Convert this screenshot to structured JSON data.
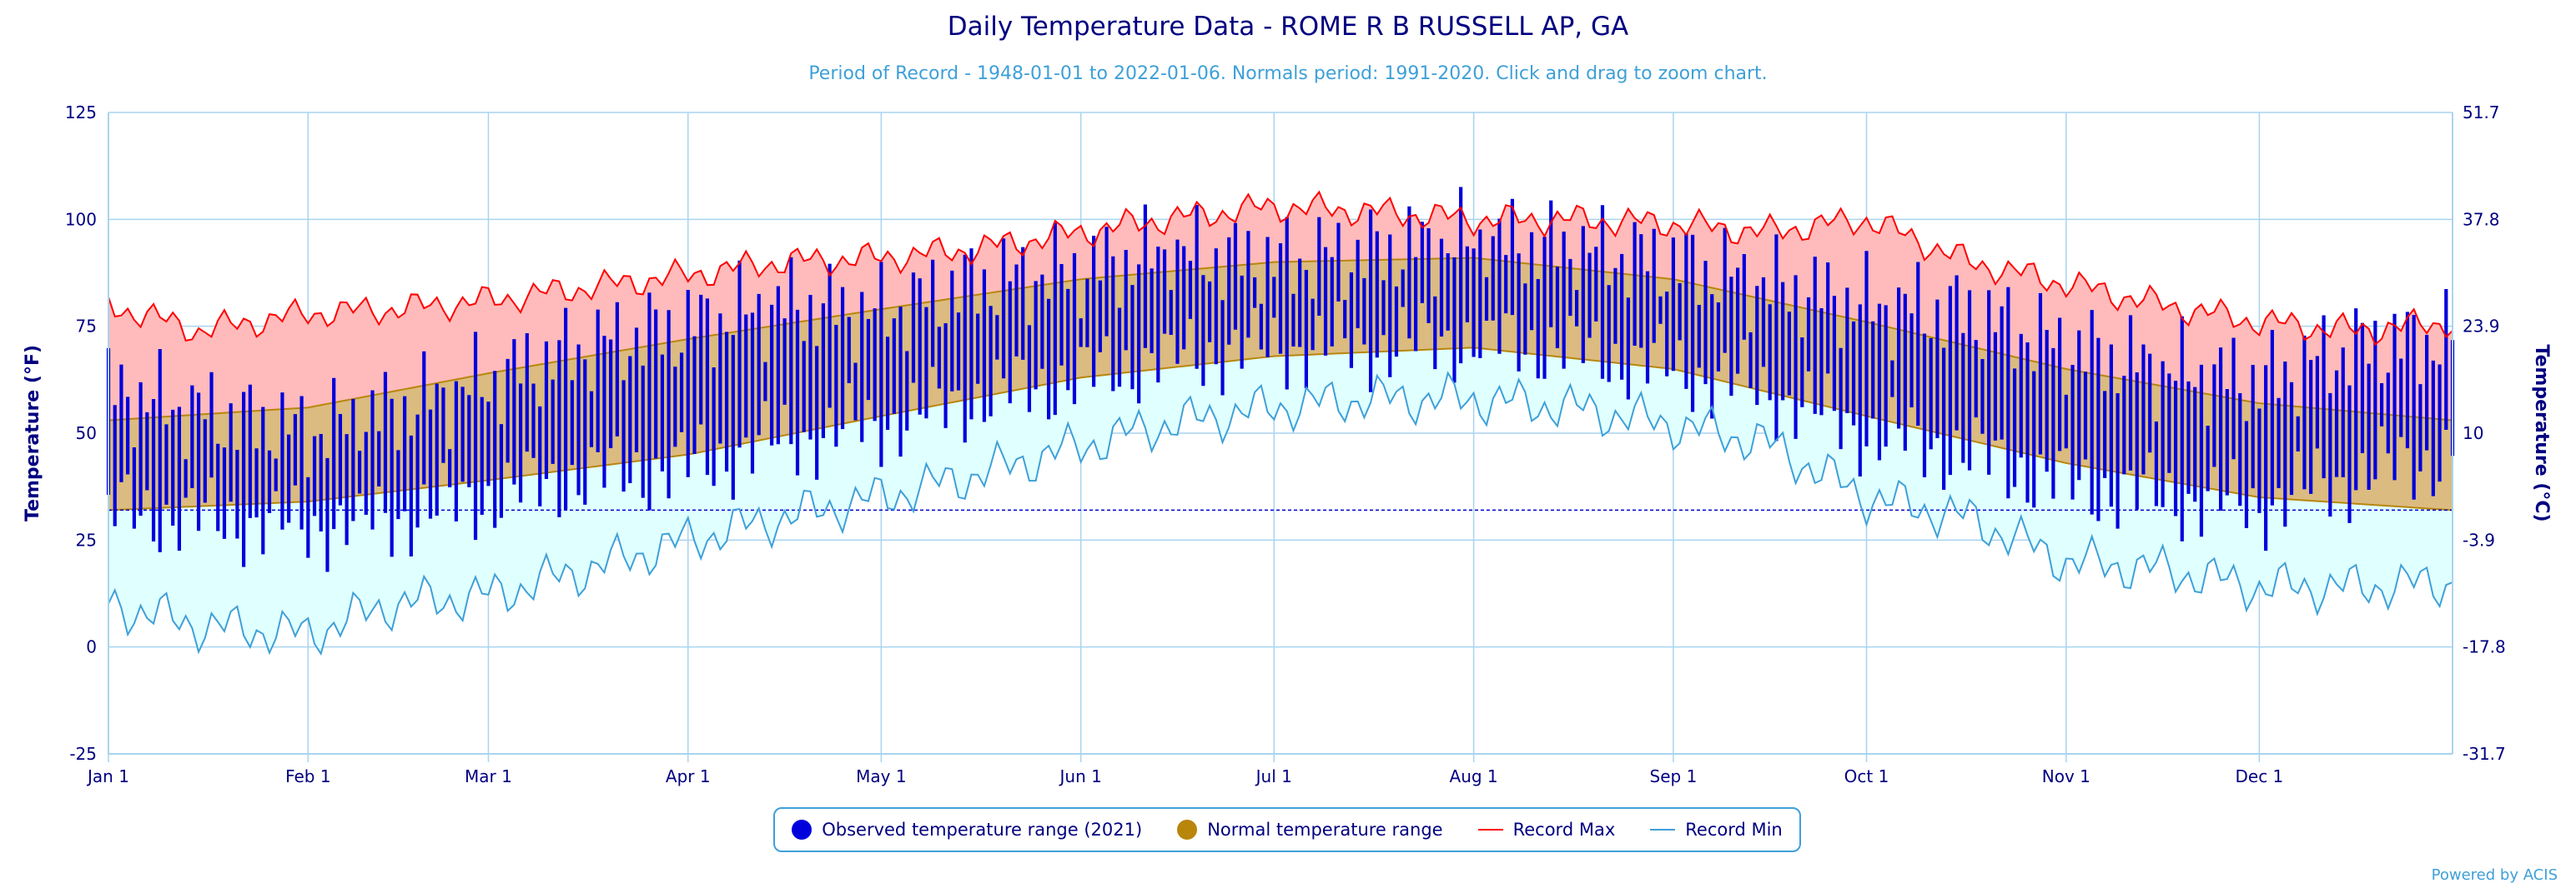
{
  "title": "Daily Temperature Data - ROME R B RUSSELL AP, GA",
  "subtitle": "Period of Record - 1948-01-01 to 2022-01-06. Normals period: 1991-2020. Click and drag to zoom chart.",
  "credit": "Powered by ACIS",
  "colors": {
    "observed": "#0000dd",
    "normal_fill": "#dbbb80",
    "normal_line": "#b8860b",
    "record_max": "#ff0000",
    "record_max_fill": "#ffbbbb",
    "record_min": "#3ea0d8",
    "record_min_fill": "#e0ffff",
    "grid": "#a8d4ef",
    "axis_text": "#000080"
  },
  "legend": {
    "observed": "Observed temperature range (2021)",
    "normal": "Normal temperature range",
    "record_max": "Record Max",
    "record_min": "Record Min"
  },
  "chart_data": {
    "type": "area",
    "ylabel_left": "Temperature (°F)",
    "ylabel_right": "Temperature (°C)",
    "ylim": [
      -25,
      125
    ],
    "y_ticks": [
      -25,
      0,
      25,
      50,
      75,
      100,
      125
    ],
    "y2_ticks": [
      "-31.7",
      "-17.8",
      "-3.9",
      "10",
      "23.9",
      "37.8",
      "51.7"
    ],
    "freezing_line": 32,
    "x_ticks": [
      {
        "label": "Jan 1",
        "day": 1
      },
      {
        "label": "Feb 1",
        "day": 32
      },
      {
        "label": "Mar 1",
        "day": 60
      },
      {
        "label": "Apr 1",
        "day": 91
      },
      {
        "label": "May 1",
        "day": 121
      },
      {
        "label": "Jun 1",
        "day": 152
      },
      {
        "label": "Jul 1",
        "day": 182
      },
      {
        "label": "Aug 1",
        "day": 213
      },
      {
        "label": "Sep 1",
        "day": 244
      },
      {
        "label": "Oct 1",
        "day": 274
      },
      {
        "label": "Nov 1",
        "day": 305
      },
      {
        "label": "Dec 1",
        "day": 335
      }
    ],
    "xlim": [
      1,
      365
    ],
    "record_max_approx": {
      "day": [
        1,
        15,
        32,
        45,
        60,
        75,
        91,
        105,
        121,
        135,
        152,
        165,
        182,
        196,
        213,
        228,
        244,
        258,
        274,
        290,
        305,
        320,
        335,
        350,
        365
      ],
      "values": [
        80,
        74,
        78,
        79,
        81,
        84,
        87,
        90,
        91,
        93,
        97,
        100,
        103,
        102,
        100,
        100,
        99,
        97,
        100,
        90,
        85,
        80,
        76,
        74,
        76
      ]
    },
    "record_min_approx": {
      "day": [
        1,
        15,
        32,
        45,
        60,
        75,
        91,
        105,
        121,
        135,
        152,
        165,
        182,
        196,
        213,
        228,
        244,
        258,
        274,
        290,
        305,
        320,
        335,
        350,
        365
      ],
      "values": [
        10,
        5,
        3,
        10,
        12,
        18,
        25,
        30,
        35,
        40,
        47,
        52,
        56,
        58,
        58,
        56,
        52,
        48,
        35,
        30,
        20,
        18,
        14,
        14,
        15
      ]
    },
    "normal_max_approx": {
      "day": [
        1,
        32,
        60,
        91,
        121,
        152,
        182,
        213,
        244,
        274,
        305,
        335,
        365
      ],
      "values": [
        53,
        56,
        64,
        72,
        79,
        86,
        90,
        91,
        86,
        76,
        65,
        57,
        53
      ]
    },
    "normal_min_approx": {
      "day": [
        1,
        32,
        60,
        91,
        121,
        152,
        182,
        213,
        244,
        274,
        305,
        335,
        365
      ],
      "values": [
        32,
        34,
        39,
        45,
        54,
        63,
        68,
        70,
        65,
        54,
        43,
        35,
        32
      ]
    },
    "observed_2021_approx": {
      "day": [
        1,
        15,
        32,
        45,
        60,
        75,
        91,
        105,
        121,
        135,
        152,
        165,
        182,
        196,
        213,
        228,
        244,
        258,
        274,
        290,
        305,
        320,
        335,
        350,
        365
      ],
      "high": [
        60,
        55,
        50,
        55,
        62,
        70,
        75,
        80,
        78,
        85,
        88,
        92,
        90,
        92,
        95,
        93,
        90,
        85,
        80,
        78,
        70,
        65,
        62,
        70,
        72
      ],
      "low": [
        32,
        30,
        28,
        30,
        35,
        40,
        42,
        48,
        52,
        58,
        63,
        68,
        70,
        70,
        72,
        70,
        65,
        60,
        50,
        45,
        38,
        35,
        33,
        40,
        45
      ]
    }
  }
}
